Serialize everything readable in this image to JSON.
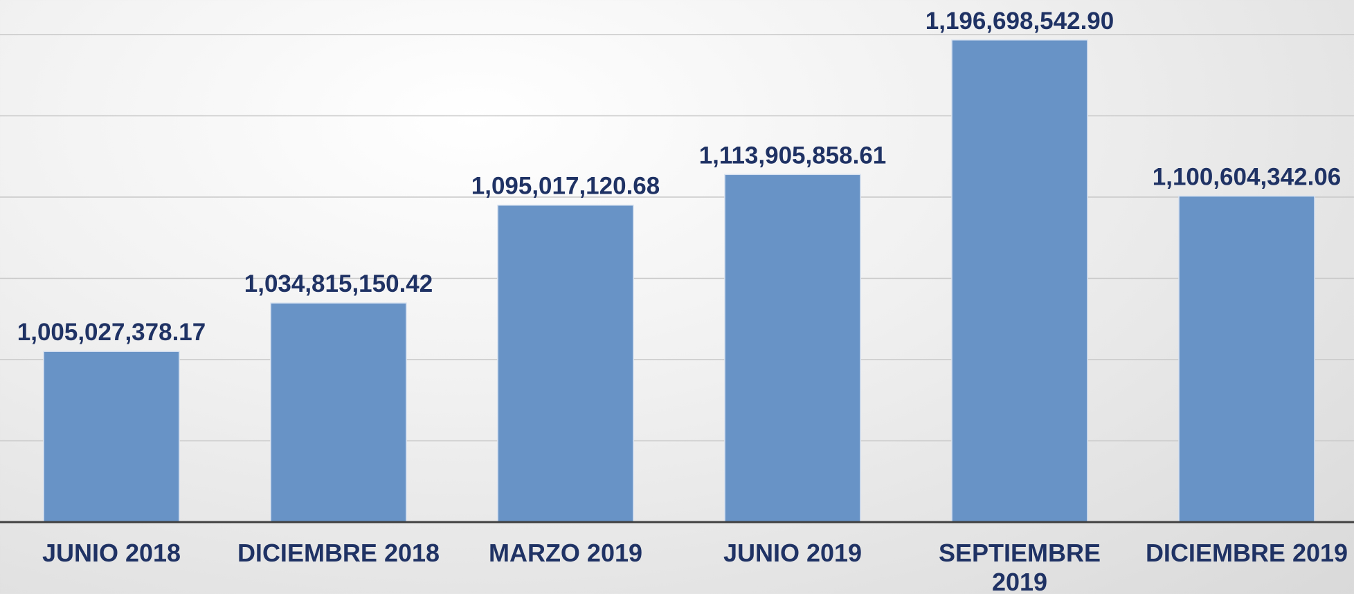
{
  "chart_data": {
    "type": "bar",
    "categories": [
      "JUNIO 2018",
      "DICIEMBRE 2018",
      "MARZO 2019",
      "JUNIO 2019",
      "SEPTIEMBRE 2019",
      "DICIEMBRE 2019"
    ],
    "values": [
      1005027378.17,
      1034815150.42,
      1095017120.68,
      1113905858.61,
      1196698542.9,
      1100604342.06
    ],
    "value_labels": [
      "1,005,027,378.17",
      "1,034,815,150.42",
      "1,095,017,120.68",
      "1,113,905,858.61",
      "1,196,698,542.90",
      "1,100,604,342.06"
    ],
    "color": "#6893c6",
    "ylim": [
      900000000,
      1200000000
    ],
    "yticks": [
      900000000,
      950000000,
      1000000000,
      1050000000,
      1100000000,
      1150000000,
      1200000000
    ],
    "grid": true
  }
}
